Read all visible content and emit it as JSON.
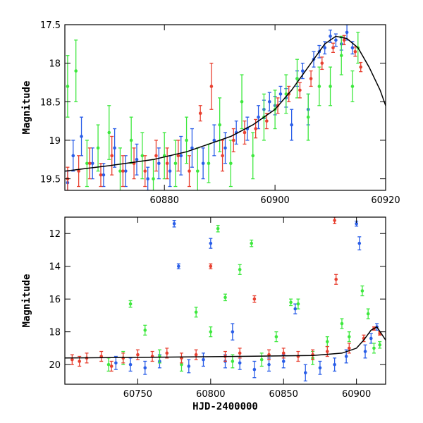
{
  "chart_data": [
    {
      "type": "scatter",
      "title": "",
      "xlabel": "",
      "ylabel": "Magnitude",
      "xlim": [
        60862,
        60920
      ],
      "ylim": [
        19.65,
        17.5
      ],
      "y_inverted": true,
      "grid": false,
      "xticks": [
        60880,
        60900,
        60920
      ],
      "yticks": [
        17.5,
        18,
        18.5,
        19,
        19.5
      ],
      "x_tick_labels": [
        "60880",
        "60900",
        "60920"
      ],
      "y_tick_labels": [
        "17.5",
        "18",
        "18.5",
        "19",
        "19.5"
      ],
      "model_curve": {
        "color": "#000000",
        "x": [
          60862,
          60870,
          60878,
          60884,
          60888,
          60892,
          60896,
          60900,
          60903,
          60906,
          60909,
          60911,
          60913,
          60915,
          60917,
          60919,
          60920
        ],
        "y": [
          19.4,
          19.33,
          19.25,
          19.15,
          19.05,
          18.95,
          18.8,
          18.6,
          18.35,
          18.05,
          17.75,
          17.65,
          17.68,
          17.8,
          18.05,
          18.35,
          18.55
        ]
      },
      "series": [
        {
          "color": "#2a5ee8",
          "x": [
            60862.5,
            60863.5,
            60865,
            60867,
            60869,
            60871,
            60873,
            60875,
            60877,
            60879,
            60881,
            60883,
            60885,
            60887,
            60889,
            60891,
            60893,
            60895,
            60897,
            60898,
            60899,
            60900,
            60901,
            60902,
            60903,
            60904,
            60905,
            60906,
            60907,
            60908,
            60909,
            60910,
            60911,
            60912,
            60913,
            60914
          ],
          "y": [
            19.55,
            19.2,
            18.95,
            19.3,
            19.45,
            19.1,
            19.4,
            19.25,
            19.5,
            19.3,
            19.4,
            19.2,
            19.1,
            19.3,
            19.0,
            19.1,
            18.9,
            18.85,
            18.7,
            18.6,
            18.5,
            18.55,
            18.4,
            18.45,
            18.8,
            18.2,
            18.1,
            18.6,
            17.95,
            17.85,
            17.8,
            17.65,
            17.7,
            17.75,
            17.6,
            17.8
          ],
          "yerr": [
            0.15,
            0.2,
            0.25,
            0.2,
            0.15,
            0.25,
            0.2,
            0.2,
            0.15,
            0.2,
            0.2,
            0.25,
            0.25,
            0.2,
            0.2,
            0.2,
            0.15,
            0.15,
            0.15,
            0.12,
            0.12,
            0.12,
            0.1,
            0.12,
            0.2,
            0.1,
            0.1,
            0.2,
            0.1,
            0.08,
            0.08,
            0.08,
            0.08,
            0.08,
            0.1,
            0.08
          ]
        },
        {
          "color": "#3ee83e",
          "x": [
            60862.5,
            60864,
            60866,
            60868,
            60870,
            60872,
            60874,
            60876,
            60878,
            60880,
            60882,
            60884,
            60886,
            60888,
            60890,
            60892,
            60894,
            60896,
            60898,
            60900,
            60902,
            60904,
            60906,
            60908,
            60910,
            60912,
            60914,
            60915
          ],
          "y": [
            18.3,
            18.1,
            19.3,
            19.1,
            18.9,
            19.4,
            19.0,
            19.2,
            19.5,
            19.2,
            19.3,
            19.0,
            19.4,
            19.3,
            18.8,
            19.3,
            18.5,
            19.2,
            18.7,
            18.6,
            18.4,
            18.2,
            18.7,
            18.3,
            18.3,
            17.9,
            18.3,
            17.8
          ],
          "yerr": [
            0.4,
            0.4,
            0.3,
            0.3,
            0.35,
            0.3,
            0.3,
            0.3,
            0.25,
            0.3,
            0.3,
            0.3,
            0.3,
            0.25,
            0.35,
            0.3,
            0.35,
            0.3,
            0.3,
            0.25,
            0.25,
            0.25,
            0.3,
            0.25,
            0.25,
            0.25,
            0.2,
            0.2
          ]
        },
        {
          "color": "#e84030",
          "x": [
            60862.5,
            60864.5,
            60866.5,
            60868.5,
            60870.5,
            60872.5,
            60874.5,
            60876.5,
            60878.5,
            60880.5,
            60882.5,
            60884.5,
            60886.5,
            60888.5,
            60890.5,
            60892.5,
            60894.5,
            60896.5,
            60898.5,
            60900.5,
            60902.5,
            60904.5,
            60906.5,
            60908.5,
            60910.5,
            60912.5,
            60914.5,
            60915.5
          ],
          "y": [
            19.5,
            19.4,
            19.3,
            19.45,
            19.2,
            19.4,
            19.3,
            19.4,
            19.2,
            19.3,
            19.2,
            19.4,
            18.65,
            18.3,
            19.2,
            19.0,
            18.9,
            18.85,
            18.75,
            18.55,
            18.4,
            18.35,
            18.2,
            18.0,
            17.8,
            17.7,
            17.85,
            18.05
          ],
          "yerr": [
            0.15,
            0.2,
            0.2,
            0.15,
            0.25,
            0.2,
            0.2,
            0.2,
            0.2,
            0.2,
            0.2,
            0.2,
            0.1,
            0.3,
            0.2,
            0.15,
            0.15,
            0.12,
            0.1,
            0.1,
            0.1,
            0.1,
            0.1,
            0.08,
            0.06,
            0.06,
            0.06,
            0.06
          ]
        }
      ]
    },
    {
      "type": "scatter",
      "title": "",
      "xlabel": "HJD-2400000",
      "ylabel": "Magnitude",
      "xlim": [
        60700,
        60920
      ],
      "ylim": [
        21.2,
        11
      ],
      "y_inverted": true,
      "grid": false,
      "xticks": [
        60750,
        60800,
        60850,
        60900
      ],
      "yticks": [
        12,
        14,
        16,
        18,
        20
      ],
      "x_tick_labels": [
        "60750",
        "60800",
        "60850",
        "60900"
      ],
      "y_tick_labels": [
        "12",
        "14",
        "16",
        "18",
        "20"
      ],
      "model_curve": {
        "color": "#000000",
        "x": [
          60700,
          60760,
          60820,
          60870,
          60890,
          60900,
          60905,
          60910,
          60914,
          60920
        ],
        "y": [
          19.6,
          19.55,
          19.5,
          19.45,
          19.3,
          19.0,
          18.5,
          17.9,
          17.7,
          18.5
        ]
      },
      "series": [
        {
          "color": "#2a5ee8",
          "x": [
            60735,
            60745,
            60755,
            60765,
            60775,
            60778,
            60785,
            60795,
            60800,
            60810,
            60815,
            60820,
            60830,
            60840,
            60850,
            60858,
            60865,
            60875,
            60885,
            60893,
            60900,
            60902,
            60906,
            60910,
            60914
          ],
          "y": [
            19.9,
            20.0,
            20.2,
            19.8,
            11.4,
            14.0,
            20.1,
            19.7,
            12.6,
            19.8,
            18.0,
            19.9,
            20.3,
            20.0,
            19.8,
            16.6,
            20.5,
            20.2,
            20.0,
            19.5,
            11.4,
            12.6,
            19.2,
            18.4,
            17.7
          ],
          "yerr": [
            0.4,
            0.4,
            0.4,
            0.4,
            0.2,
            0.15,
            0.4,
            0.4,
            0.3,
            0.4,
            0.5,
            0.4,
            0.5,
            0.4,
            0.4,
            0.3,
            0.5,
            0.4,
            0.4,
            0.4,
            0.15,
            0.4,
            0.4,
            0.3,
            0.2
          ]
        },
        {
          "color": "#3ee83e",
          "x": [
            60730,
            60740,
            60745,
            60755,
            60765,
            60780,
            60790,
            60800,
            60805,
            60810,
            60815,
            60820,
            60828,
            60835,
            60845,
            60855,
            60860,
            60870,
            60880,
            60890,
            60895,
            60904,
            60908,
            60912,
            60916
          ],
          "y": [
            20.0,
            19.6,
            16.3,
            17.9,
            19.5,
            20.0,
            16.8,
            18.0,
            11.7,
            15.9,
            19.8,
            14.2,
            12.6,
            19.7,
            18.3,
            16.2,
            16.3,
            19.6,
            18.6,
            17.5,
            18.3,
            15.5,
            16.9,
            19.0,
            18.8
          ],
          "yerr": [
            0.4,
            0.4,
            0.2,
            0.3,
            0.4,
            0.4,
            0.3,
            0.3,
            0.2,
            0.2,
            0.4,
            0.3,
            0.2,
            0.4,
            0.3,
            0.2,
            0.3,
            0.4,
            0.3,
            0.3,
            0.3,
            0.3,
            0.3,
            0.3,
            0.2
          ]
        },
        {
          "color": "#e84030",
          "x": [
            60705,
            60710,
            60715,
            60725,
            60732,
            60740,
            60750,
            60760,
            60770,
            60780,
            60790,
            60800,
            60810,
            60820,
            60830,
            60840,
            60850,
            60860,
            60870,
            60880,
            60885,
            60886,
            60895,
            60905,
            60912,
            60916
          ],
          "y": [
            19.7,
            19.8,
            19.6,
            19.5,
            20.1,
            19.6,
            19.4,
            19.5,
            19.3,
            19.6,
            19.4,
            14.0,
            19.5,
            19.3,
            16.0,
            19.4,
            19.3,
            19.5,
            19.4,
            19.2,
            11.2,
            14.8,
            19.0,
            18.4,
            17.8,
            18.1
          ],
          "yerr": [
            0.3,
            0.3,
            0.3,
            0.3,
            0.3,
            0.3,
            0.3,
            0.3,
            0.3,
            0.3,
            0.3,
            0.15,
            0.3,
            0.3,
            0.2,
            0.3,
            0.3,
            0.3,
            0.3,
            0.3,
            0.2,
            0.3,
            0.3,
            0.2,
            0.1,
            0.1
          ]
        }
      ]
    }
  ]
}
